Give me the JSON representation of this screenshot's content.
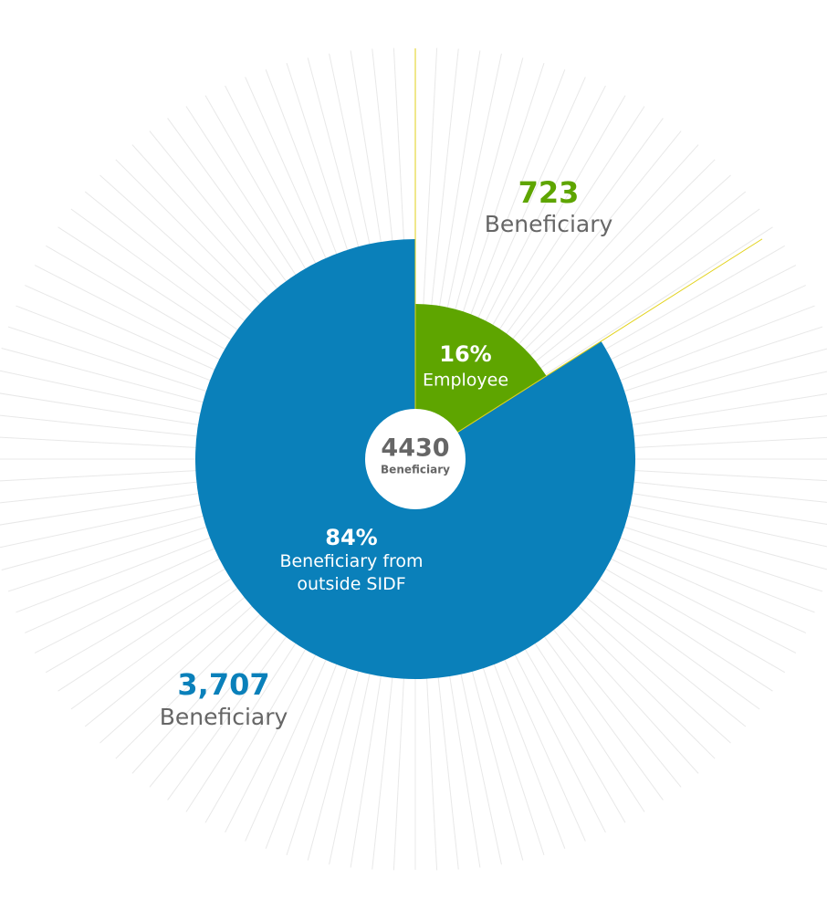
{
  "chart_data": {
    "type": "pie",
    "categories": [
      "Employee",
      "Beneficiary from outside SIDF"
    ],
    "values": [
      16,
      84
    ],
    "value_labels": [
      "16%",
      "84%"
    ],
    "colors": [
      "#5ea500",
      "#0a80ba"
    ],
    "counts": [
      723,
      3707
    ],
    "count_labels": [
      "723",
      "3,707"
    ],
    "count_captions": [
      "Beneficiary",
      "Beneficiary"
    ],
    "total": 4430,
    "total_caption": "Beneficiary"
  }
}
